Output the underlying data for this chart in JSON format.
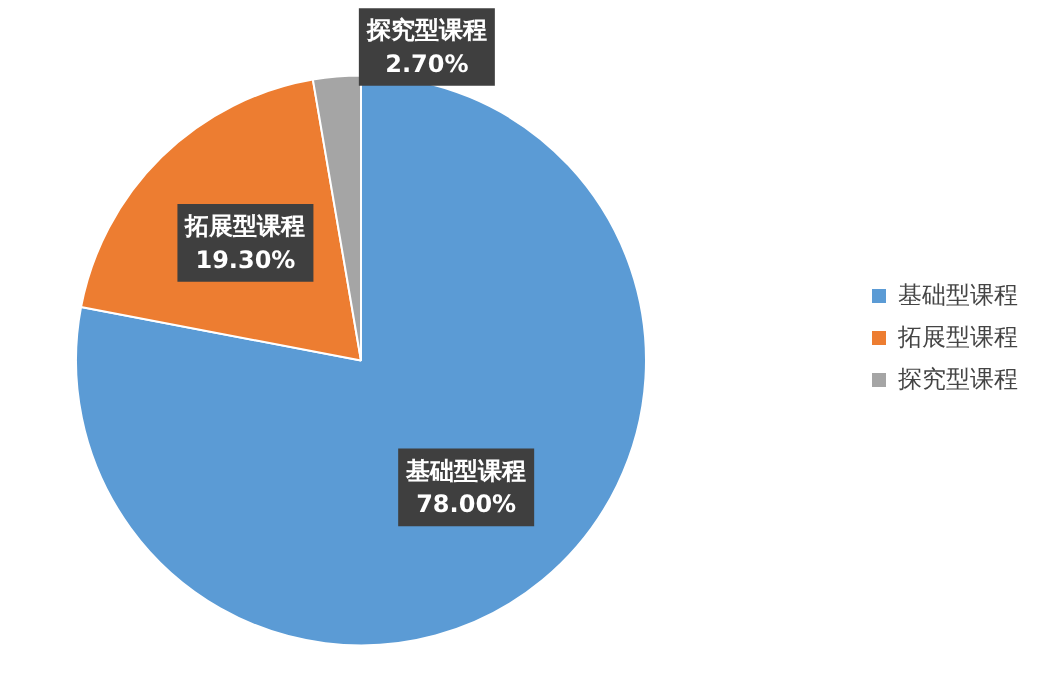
{
  "chart_data": {
    "type": "pie",
    "categories": [
      "基础型课程",
      "拓展型课程",
      "探究型课程"
    ],
    "values": [
      78.0,
      19.3,
      2.7
    ],
    "colors": [
      "#5b9bd5",
      "#ed7d31",
      "#a5a5a5"
    ],
    "value_labels": [
      "78.00%",
      "19.30%",
      "2.70%"
    ],
    "legend": "right"
  }
}
